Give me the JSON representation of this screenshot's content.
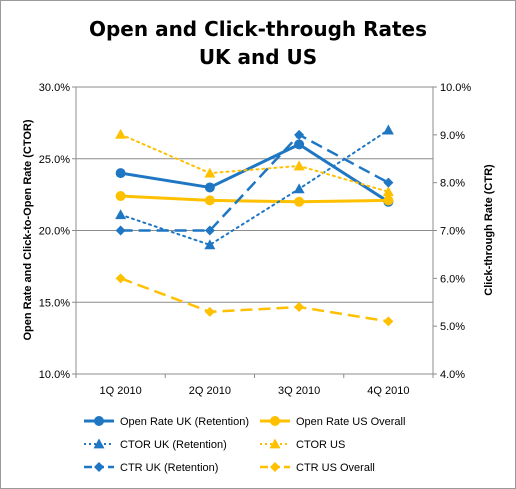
{
  "chart_data": {
    "type": "line",
    "title_lines": [
      "Open and Click-through Rates",
      "UK and US"
    ],
    "categories": [
      "1Q 2010",
      "2Q 2010",
      "3Q 2010",
      "4Q 2010"
    ],
    "left_axis": {
      "label": "Open Rate and Click-to-Open Rate (CTOR)",
      "range": [
        0.1,
        0.3
      ],
      "ticks": [
        "10.0%",
        "15.0%",
        "20.0%",
        "25.0%",
        "30.0%"
      ],
      "tick_values": [
        0.1,
        0.15,
        0.2,
        0.25,
        0.3
      ]
    },
    "right_axis": {
      "label": "Click-through Rate (CTR)",
      "range": [
        0.04,
        0.1
      ],
      "ticks": [
        "4.0%",
        "5.0%",
        "6.0%",
        "7.0%",
        "8.0%",
        "9.0%",
        "10.0%"
      ],
      "tick_values": [
        0.04,
        0.05,
        0.06,
        0.07,
        0.08,
        0.09,
        0.1
      ]
    },
    "grid": true,
    "legend_position": "bottom",
    "series": [
      {
        "name": "Open Rate UK (Retention)",
        "axis": "left",
        "values": [
          0.24,
          0.23,
          0.26,
          0.22
        ],
        "color": "#1f77c4",
        "dash": "solid",
        "marker": "circle",
        "width": 3
      },
      {
        "name": "Open Rate US Overall",
        "axis": "left",
        "values": [
          0.224,
          0.221,
          0.22,
          0.221
        ],
        "color": "#ffc000",
        "dash": "solid",
        "marker": "circle",
        "width": 3
      },
      {
        "name": "CTOR UK (Retention)",
        "axis": "left",
        "values": [
          0.211,
          0.19,
          0.229,
          0.27
        ],
        "color": "#1f77c4",
        "dash": "dot",
        "marker": "triangle",
        "width": 2
      },
      {
        "name": "CTOR US",
        "axis": "left",
        "values": [
          0.267,
          0.24,
          0.245,
          0.227
        ],
        "color": "#ffc000",
        "dash": "dot",
        "marker": "triangle",
        "width": 2
      },
      {
        "name": "CTR UK (Retention)",
        "axis": "right",
        "values": [
          0.07,
          0.07,
          0.09,
          0.08
        ],
        "color": "#1f77c4",
        "dash": "dash",
        "marker": "diamond",
        "width": 2.5
      },
      {
        "name": "CTR US Overall",
        "axis": "right",
        "values": [
          0.06,
          0.053,
          0.054,
          0.051
        ],
        "color": "#ffc000",
        "dash": "dash",
        "marker": "diamond",
        "width": 2.5
      }
    ]
  }
}
